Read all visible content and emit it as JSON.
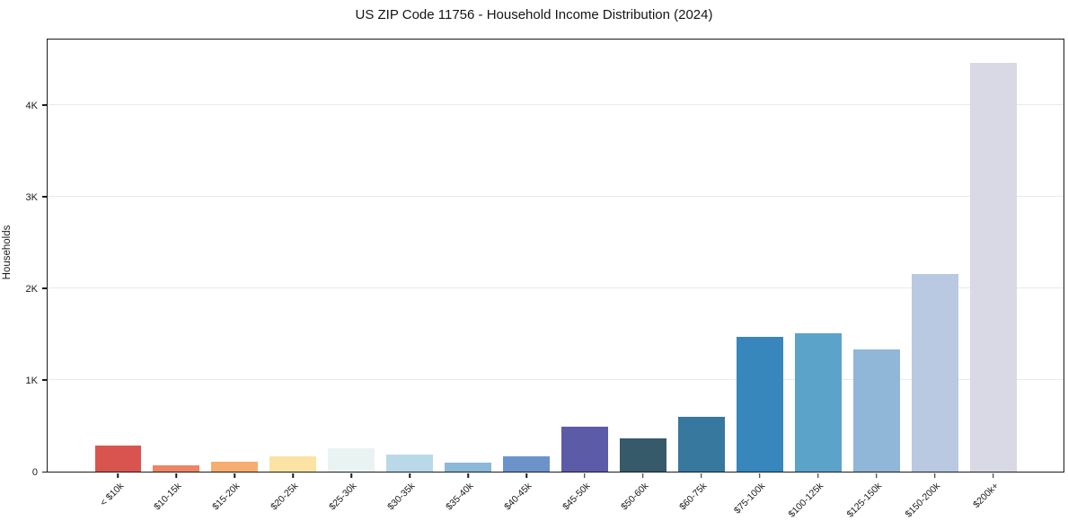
{
  "page": {
    "title": "US ZIP Code 11756 - Household Income Distribution (2024)"
  },
  "chart_data": {
    "type": "bar",
    "title": "US ZIP Code 11756 - Household Income Distribution (2024)",
    "xlabel": "",
    "ylabel": "Households",
    "categories": [
      "< $10k",
      "$10-15k",
      "$15-20k",
      "$20-25k",
      "$25-30k",
      "$30-35k",
      "$35-40k",
      "$40-45k",
      "$45-50k",
      "$50-60k",
      "$60-75k",
      "$75-100k",
      "$100-125k",
      "$125-150k",
      "$150-200k",
      "$200k+"
    ],
    "values": [
      280,
      65,
      110,
      170,
      250,
      185,
      100,
      170,
      490,
      360,
      600,
      1470,
      1510,
      1330,
      2150,
      4460
    ],
    "bar_colors": [
      "#d9544f",
      "#ee8466",
      "#f6ae70",
      "#fbe3a3",
      "#e8f3f2",
      "#b9d9e8",
      "#8cb8da",
      "#6b93ca",
      "#5c5ba8",
      "#375a6b",
      "#36789e",
      "#3787bd",
      "#5ba3c9",
      "#90b6d8",
      "#b8c9e1",
      "#d9d9e6"
    ],
    "yticks": {
      "values": [
        0,
        1000,
        2000,
        3000,
        4000
      ],
      "labels": [
        "0",
        "1K",
        "2K",
        "3K",
        "4K"
      ]
    },
    "ylim": [
      0,
      4700
    ],
    "grid": "horizontal-light",
    "legend": "none",
    "colors": {
      "background": "#ffffff",
      "spine": "#1a1a1a",
      "gridline": "#e9e9f0",
      "text": "#1a1a1a"
    }
  }
}
